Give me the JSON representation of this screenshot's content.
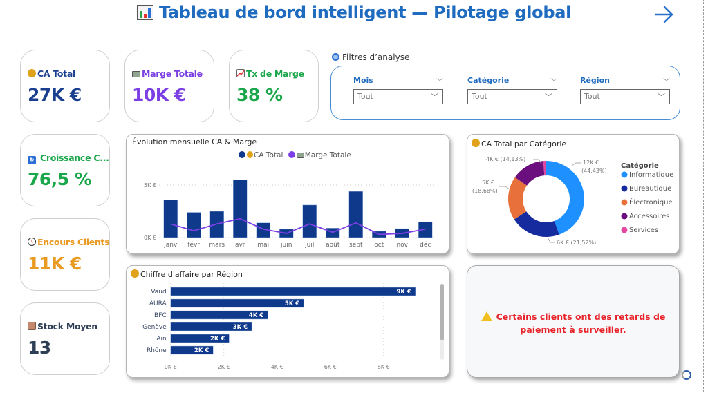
{
  "header": {
    "title": "Tableau de bord intelligent — Pilotage global",
    "title_icon": "bar-chart-icon",
    "nav_icon": "arrow-right-icon"
  },
  "kpis": [
    {
      "id": "ca-total",
      "label": "CA Total",
      "value": "27K €",
      "icon": "money-bag-icon",
      "color": "#1b3f8f"
    },
    {
      "id": "marge-totale",
      "label": "Marge Totale",
      "value": "10K €",
      "icon": "banknote-icon",
      "color": "#7b3fe4"
    },
    {
      "id": "tx-marge",
      "label": "Tx de Marge",
      "value": "38 %",
      "icon": "chart-increasing-icon",
      "color": "#1aa64a"
    },
    {
      "id": "croissance",
      "label": "Croissance C...",
      "value": "76,5 %",
      "icon": "refresh-icon",
      "color": "#1aa64a"
    },
    {
      "id": "encours-clients",
      "label": "Encours Clients",
      "value": "11K €",
      "icon": "clock-icon",
      "color": "#e89a22"
    },
    {
      "id": "stock-moyen",
      "label": "Stock Moyen",
      "value": "13",
      "icon": "package-icon",
      "color": "#2e3e55"
    }
  ],
  "filters": {
    "label": "Filtres d’analyse",
    "icon": "magnifier-icon",
    "slicers": [
      {
        "title": "Mois",
        "value": "Tout"
      },
      {
        "title": "Catégorie",
        "value": "Tout"
      },
      {
        "title": "Région",
        "value": "Tout"
      }
    ]
  },
  "alert": {
    "icon": "warning-icon",
    "line1": "Certains clients ont des retards de",
    "line2": "paiement à surveiller."
  },
  "chart_data": [
    {
      "type": "bar",
      "title": "Évolution mensuelle CA & Marge",
      "categories": [
        "janv",
        "févr",
        "mars",
        "avr",
        "mai",
        "juin",
        "juil",
        "août",
        "sept",
        "oct",
        "nov",
        "déc"
      ],
      "series": [
        {
          "name": "CA Total",
          "type": "bar",
          "color": "#0f3a8c",
          "values": [
            3600,
            2400,
            2500,
            5500,
            1400,
            800,
            3100,
            900,
            4400,
            600,
            850,
            1500
          ]
        },
        {
          "name": "Marge Totale",
          "type": "line",
          "color": "#7b3fe4",
          "values": [
            1300,
            650,
            1300,
            1800,
            800,
            400,
            1300,
            500,
            1400,
            300,
            400,
            800
          ]
        }
      ],
      "yticks": [
        "0K €",
        "5K €"
      ],
      "ylim": [
        0,
        6000
      ],
      "legend": "top-center",
      "grid": true
    },
    {
      "type": "pie",
      "title": "CA Total par Catégorie",
      "legend_title": "Catégorie",
      "legend": "right",
      "slices": [
        {
          "label": "Informatique",
          "value_label": "12K €",
          "percent": 44.43,
          "percent_label": "(44,43%)",
          "color": "#1e90ff"
        },
        {
          "label": "Bureautique",
          "value_label": "6K €",
          "percent": 21.52,
          "percent_label": "(21,52%)",
          "color": "#162c9e"
        },
        {
          "label": "Électronique",
          "value_label": "5K €",
          "percent": 18.68,
          "percent_label": "(18,68%)",
          "color": "#e8703a"
        },
        {
          "label": "Accessoires",
          "value_label": "4K €",
          "percent": 14.13,
          "percent_label": "(14,13%)",
          "color": "#6b0f7e"
        },
        {
          "label": "Services",
          "value_label": "",
          "percent": 1.24,
          "percent_label": "",
          "color": "#e4479f"
        }
      ]
    },
    {
      "type": "bar",
      "orientation": "horizontal",
      "title": "Chiffre d'affaire par Région",
      "categories": [
        "Vaud",
        "AURA",
        "BFC",
        "Genève",
        "Ain",
        "Rhône"
      ],
      "values": [
        9200,
        5000,
        3650,
        3050,
        2200,
        1600
      ],
      "data_labels": [
        "9K €",
        "5K €",
        "4K €",
        "3K €",
        "2K €",
        "2K €"
      ],
      "xticks": [
        "0K €",
        "2K €",
        "4K €",
        "6K €",
        "8K €"
      ],
      "xlim": [
        0,
        9600
      ],
      "color": "#0f3a8c",
      "grid": true
    }
  ]
}
